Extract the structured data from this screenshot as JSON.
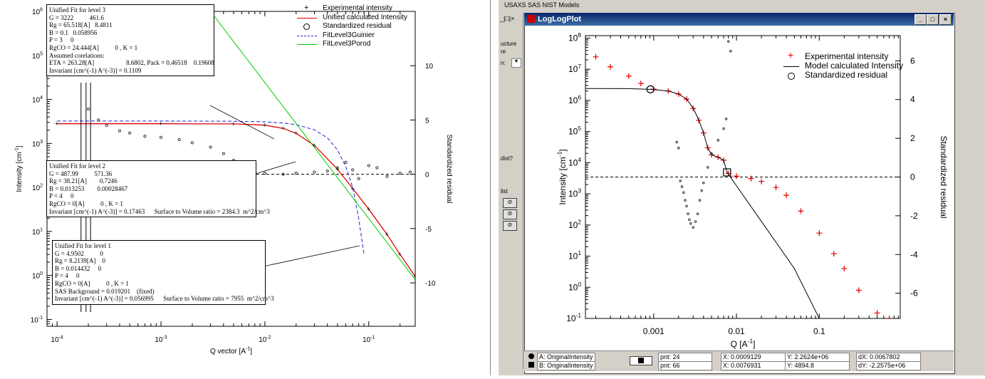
{
  "left_panel": {
    "legend": [
      "Experimental intensity",
      "Unified calculated Intensity",
      "Standardized residual",
      "FitLevel3Guinier",
      "FitLevel3Porod"
    ],
    "info_level3": "Unified Fit for level 3\nG = 3222          461.6\nRg = 65.518[A]   8.4811\nB = 0.1   0.058956\nP = 3     0\nRgCO = 24.444[A]          0 , K = 1\nAssumed corelations:\nETA = 263.28[A]                    8.6802, Pack = 0.46518    0.19608\nInvariant [cm^(-1) A^(-3)] = 0.1109",
    "info_level2": "Unified Fit for level 2\nG = 487.99          571.36\nRg = 38.21[A]        0.7246\nB = 0.013253        0.00028467\nP = 4     0\nRgCO = 0[A]          0 , K = 1\nInvariant [cm^(-1) A^(-3)] = 0.17463      Surface to Volume ratio = 2384.3  m^2/cm^3",
    "info_level1": "Unified Fit for level 1\nG = 4.9502          0\nRg = 8.2139[A]    0\nB = 0.014432     0\nP = 4     0\nRgCO = 0[A]          0 , K = 1\nSAS Background = 0.019201    (fixed)\nInvariant [cm^(-1) A^(-3)] = 0.056995      Surface to Volume ratio = 7955  m^2/cm^3"
  },
  "right_panel": {
    "menu_text": "USAXS   SAS   NIST Models",
    "window_title": "LogLogPlot",
    "sidebar_fragments": [
      "ucture",
      "re",
      "n:",
      "dist?",
      "list"
    ],
    "legend": [
      "Experimental intensity",
      "Model calculated Intensity",
      "Standardized residual"
    ],
    "status": {
      "a_label": "A: OriginalIntensity",
      "b_label": "B: OriginalIntensity",
      "pnt_a": "pnt: 24",
      "pnt_b": "pnt: 66",
      "x_a": "X: 0.0009129",
      "y_a": "Y: 2.2624e+06",
      "x_b": "X: 0.0076931",
      "y_b": "Y: 4894.8",
      "dx": "dX: 0.0067802",
      "dy": "dY: -2.2575e+06"
    }
  },
  "chart_data": [
    {
      "type": "scatter",
      "xlabel": "Q vector [A^-1]",
      "ylabel": "Intensity [cm^-1]",
      "y2label": "Standardized residual",
      "xscale": "log",
      "yscale": "log",
      "xlim": [
        8e-05,
        0.28
      ],
      "ylim": [
        0.07,
        1000000
      ],
      "y2lim": [
        -14,
        15
      ],
      "xticks": [
        0.0001,
        0.001,
        0.01,
        0.1
      ],
      "xtick_labels": [
        "10^-4",
        "10^-3",
        "10^-2",
        "10^-1"
      ],
      "yticks": [
        0.1,
        1,
        10,
        100,
        1000,
        10000,
        100000,
        1000000
      ],
      "ytick_labels": [
        "10^-1",
        "10^0",
        "10^1",
        "10^2",
        "10^3",
        "10^4",
        "10^5",
        "10^6"
      ],
      "y2ticks": [
        -10,
        -5,
        0,
        5,
        10
      ],
      "series": [
        {
          "name": "Unified calculated Intensity",
          "x": [
            0.0001,
            0.001,
            0.005,
            0.01,
            0.015,
            0.02,
            0.03,
            0.05,
            0.07,
            0.1,
            0.15,
            0.2,
            0.28
          ],
          "y": [
            2800,
            2800,
            2780,
            2600,
            2200,
            1700,
            900,
            260,
            95,
            32,
            8.5,
            3,
            0.95
          ]
        },
        {
          "name": "FitLevel3Guinier",
          "x": [
            0.0001,
            0.001,
            0.005,
            0.01,
            0.015,
            0.02,
            0.03,
            0.04,
            0.05,
            0.06,
            0.07,
            0.08,
            0.09
          ],
          "y": [
            3222,
            3221,
            3190,
            3100,
            2920,
            2670,
            2040,
            1340,
            710,
            300,
            100,
            20,
            3
          ]
        },
        {
          "name": "FitLevel3Porod",
          "x": [
            0.003,
            0.28
          ],
          "y": [
            1000000,
            0.81
          ]
        },
        {
          "name": "Standardized residual",
          "x": [
            0.0002,
            0.00025,
            0.0003,
            0.0004,
            0.0005,
            0.0007,
            0.001,
            0.0015,
            0.002,
            0.003,
            0.004,
            0.005,
            0.007,
            0.01,
            0.015,
            0.02,
            0.03,
            0.04,
            0.05,
            0.06,
            0.07,
            0.08,
            0.1,
            0.12,
            0.15,
            0.2,
            0.25
          ],
          "y": [
            6,
            5,
            4.5,
            4,
            3.8,
            3.5,
            3.4,
            3.2,
            2.9,
            2.5,
            1.9,
            1.3,
            0.6,
            0.1,
            0,
            0.1,
            0.2,
            0.3,
            0.6,
            1.1,
            0.4,
            -0.4,
            0.8,
            0.6,
            -0.2,
            0.1,
            0.2
          ]
        }
      ]
    },
    {
      "type": "scatter",
      "xlabel": "Q [A^-1]",
      "ylabel": "Intensity [cm^-1]",
      "y2label": "Standardized residual",
      "xscale": "log",
      "yscale": "log",
      "xlim": [
        0.00015,
        0.95
      ],
      "ylim": [
        0.1,
        120000000
      ],
      "y2lim": [
        -7.3,
        7.3
      ],
      "xticks": [
        0.001,
        0.01,
        0.1
      ],
      "xtick_labels": [
        "0.001",
        "0.01",
        "0.1"
      ],
      "yticks": [
        0.1,
        1,
        10,
        100,
        1000,
        10000,
        100000,
        1000000,
        10000000,
        100000000
      ],
      "ytick_labels": [
        "10^-1",
        "10^0",
        "10^1",
        "10^2",
        "10^3",
        "10^4",
        "10^5",
        "10^6",
        "10^7",
        "10^8"
      ],
      "y2ticks": [
        -6,
        -4,
        -2,
        0,
        2,
        4,
        6
      ],
      "series": [
        {
          "name": "Experimental intensity",
          "x": [
            0.0002,
            0.0003,
            0.0005,
            0.0007,
            0.001,
            0.0015,
            0.002,
            0.0025,
            0.003,
            0.0035,
            0.004,
            0.0045,
            0.005,
            0.006,
            0.007,
            0.008,
            0.01,
            0.015,
            0.02,
            0.03,
            0.04,
            0.06,
            0.1,
            0.15,
            0.2,
            0.3,
            0.5,
            0.7
          ],
          "y": [
            25000000,
            12000000,
            6000000,
            3500000,
            2300000,
            2000000,
            1600000,
            1100000,
            550000,
            230000,
            90000,
            30000,
            18000,
            15000,
            12000,
            4500,
            3700,
            3100,
            2500,
            1600,
            900,
            280,
            55,
            12,
            4,
            0.8,
            0.15,
            0.1
          ]
        },
        {
          "name": "Model calculated Intensity",
          "x": [
            0.00015,
            0.0005,
            0.0009129,
            0.0015,
            0.002,
            0.0025,
            0.003,
            0.0035,
            0.004,
            0.0045,
            0.005,
            0.006,
            0.007,
            0.0077,
            0.01,
            0.02,
            0.05,
            0.1
          ],
          "y": [
            2400000,
            2380000,
            2262400,
            2000000,
            1600000,
            1100000,
            560000,
            240000,
            90000,
            30000,
            18000,
            15000,
            12000,
            4894.8,
            1800,
            130,
            4,
            0.1
          ]
        },
        {
          "name": "Standardized residual",
          "x": [
            0.0019,
            0.002,
            0.0021,
            0.0022,
            0.0023,
            0.0024,
            0.0025,
            0.0026,
            0.0027,
            0.0028,
            0.003,
            0.0032,
            0.0034,
            0.0036,
            0.0038,
            0.004,
            0.0045,
            0.005,
            0.006,
            0.007,
            0.0075,
            0.008,
            0.0085
          ],
          "y": [
            1.8,
            1.5,
            -0.2,
            -0.5,
            -0.8,
            -1.2,
            -1.5,
            -1.9,
            -2.2,
            -2.4,
            -2.6,
            -2.3,
            -1.9,
            -1.2,
            -0.7,
            -0.3,
            0.5,
            1.2,
            1.9,
            2.5,
            3.0,
            7.0,
            6.5
          ]
        }
      ]
    }
  ]
}
